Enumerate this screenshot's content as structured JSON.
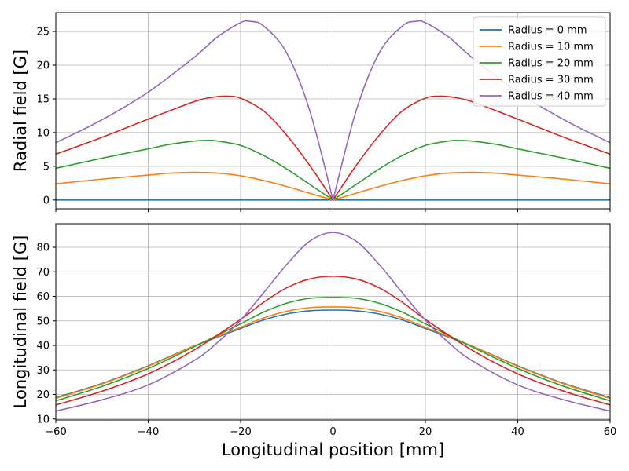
{
  "chart_data": [
    {
      "type": "line",
      "title": "",
      "xlabel": "",
      "ylabel": "Radial field [G]",
      "xlim": [
        -60,
        60
      ],
      "ylim": [
        -1.3,
        27.8
      ],
      "x_ticks": [
        -60,
        -40,
        -20,
        0,
        20,
        40,
        60
      ],
      "x_tick_labels_shown": false,
      "y_ticks": [
        0,
        5,
        10,
        15,
        20,
        25
      ],
      "grid": true,
      "legend": {
        "placement": "top-right",
        "entries": [
          "Radius = 0 mm",
          "Radius = 10 mm",
          "Radius = 20 mm",
          "Radius = 30 mm",
          "Radius = 40 mm"
        ]
      },
      "series": [
        {
          "name": "Radius = 0 mm",
          "color": "#1f77b4",
          "x": [
            -60,
            60
          ],
          "y": [
            0,
            0
          ]
        },
        {
          "name": "Radius = 10 mm",
          "color": "#ff7f0e",
          "x": [
            -60,
            -50,
            -40,
            -35,
            -30,
            -25,
            -20,
            -15,
            -10,
            -5,
            0,
            5,
            10,
            15,
            20,
            25,
            30,
            35,
            40,
            50,
            60
          ],
          "y": [
            2.4,
            3.1,
            3.7,
            4.0,
            4.1,
            4.0,
            3.6,
            2.9,
            2.0,
            1.0,
            0,
            1.0,
            2.0,
            2.9,
            3.6,
            4.0,
            4.1,
            4.0,
            3.7,
            3.1,
            2.4
          ]
        },
        {
          "name": "Radius = 20 mm",
          "color": "#2ca02c",
          "x": [
            -60,
            -50,
            -40,
            -35,
            -30,
            -27,
            -25,
            -20,
            -15,
            -10,
            -5,
            0,
            5,
            10,
            15,
            20,
            25,
            27,
            30,
            35,
            40,
            50,
            60
          ],
          "y": [
            4.7,
            6.2,
            7.6,
            8.3,
            8.75,
            8.85,
            8.75,
            8.1,
            6.6,
            4.6,
            2.3,
            0,
            2.3,
            4.6,
            6.6,
            8.1,
            8.75,
            8.85,
            8.75,
            8.3,
            7.6,
            6.2,
            4.7
          ]
        },
        {
          "name": "Radius = 30 mm",
          "color": "#d62728",
          "x": [
            -60,
            -50,
            -40,
            -30,
            -26,
            -23,
            -20,
            -15,
            -10,
            -5,
            0,
            5,
            10,
            15,
            20,
            23,
            26,
            30,
            40,
            50,
            60
          ],
          "y": [
            6.8,
            9.3,
            12.0,
            14.6,
            15.25,
            15.4,
            15.1,
            13.2,
            9.6,
            5.1,
            0,
            5.1,
            9.6,
            13.2,
            15.1,
            15.4,
            15.25,
            14.6,
            12.0,
            9.3,
            6.8
          ]
        },
        {
          "name": "Radius = 40 mm",
          "color": "#9467bd",
          "x": [
            -60,
            -50,
            -40,
            -30,
            -25,
            -20,
            -18,
            -15,
            -10,
            -5,
            0,
            5,
            10,
            15,
            18,
            20,
            25,
            30,
            40,
            50,
            60
          ],
          "y": [
            8.5,
            11.9,
            16.0,
            21.2,
            24.2,
            26.3,
            26.5,
            25.8,
            21.8,
            13.2,
            0,
            13.2,
            21.8,
            25.8,
            26.5,
            26.3,
            24.2,
            21.2,
            16.0,
            11.9,
            8.5
          ]
        }
      ]
    },
    {
      "type": "line",
      "title": "",
      "xlabel": "Longitudinal position [mm]",
      "ylabel": "Longitudinal field [G]",
      "xlim": [
        -60,
        60
      ],
      "ylim": [
        9.6,
        89.6
      ],
      "x_ticks": [
        -60,
        -40,
        -20,
        0,
        20,
        40,
        60
      ],
      "y_ticks": [
        10,
        20,
        30,
        40,
        50,
        60,
        70,
        80
      ],
      "grid": true,
      "series": [
        {
          "name": "Radius = 0 mm",
          "color": "#1f77b4",
          "x": [
            -60,
            -50,
            -40,
            -30,
            -20,
            -15,
            -10,
            -5,
            0,
            5,
            10,
            15,
            20,
            30,
            40,
            50,
            60
          ],
          "y": [
            18.7,
            24.5,
            31.7,
            39.8,
            46.9,
            50.4,
            52.8,
            54.1,
            54.4,
            54.1,
            52.8,
            50.4,
            46.9,
            39.8,
            31.7,
            24.5,
            18.7
          ]
        },
        {
          "name": "Radius = 10 mm",
          "color": "#ff7f0e",
          "x": [
            -60,
            -50,
            -40,
            -30,
            -20,
            -15,
            -10,
            -5,
            0,
            5,
            10,
            15,
            20,
            30,
            40,
            50,
            60
          ],
          "y": [
            18.4,
            24.3,
            31.5,
            39.8,
            47.4,
            51.2,
            53.9,
            55.4,
            55.7,
            55.4,
            53.9,
            51.2,
            47.4,
            39.8,
            31.5,
            24.3,
            18.4
          ]
        },
        {
          "name": "Radius = 20 mm",
          "color": "#2ca02c",
          "x": [
            -60,
            -50,
            -40,
            -30,
            -20,
            -15,
            -10,
            -5,
            0,
            5,
            10,
            15,
            20,
            30,
            40,
            50,
            60
          ],
          "y": [
            17.4,
            23.3,
            30.6,
            39.5,
            48.8,
            53.6,
            57.2,
            59.2,
            59.6,
            59.2,
            57.2,
            53.6,
            48.8,
            39.5,
            30.6,
            23.3,
            17.4
          ]
        },
        {
          "name": "Radius = 30 mm",
          "color": "#d62728",
          "x": [
            -60,
            -50,
            -40,
            -30,
            -20,
            -15,
            -10,
            -5,
            0,
            5,
            10,
            15,
            20,
            30,
            40,
            50,
            60
          ],
          "y": [
            15.7,
            21.3,
            28.4,
            38.2,
            50.6,
            57.6,
            63.5,
            67.1,
            68.2,
            67.1,
            63.5,
            57.6,
            50.6,
            38.2,
            28.4,
            21.3,
            15.7
          ]
        },
        {
          "name": "Radius = 40 mm",
          "color": "#9467bd",
          "x": [
            -60,
            -50,
            -40,
            -30,
            -25,
            -20,
            -15,
            -10,
            -5,
            0,
            5,
            10,
            15,
            20,
            25,
            30,
            40,
            50,
            60
          ],
          "y": [
            13.2,
            17.8,
            23.9,
            33.9,
            41.2,
            50.3,
            61.5,
            73.0,
            82.5,
            86.0,
            82.5,
            73.0,
            61.5,
            50.3,
            41.2,
            33.9,
            23.9,
            17.8,
            13.2
          ]
        }
      ]
    }
  ]
}
